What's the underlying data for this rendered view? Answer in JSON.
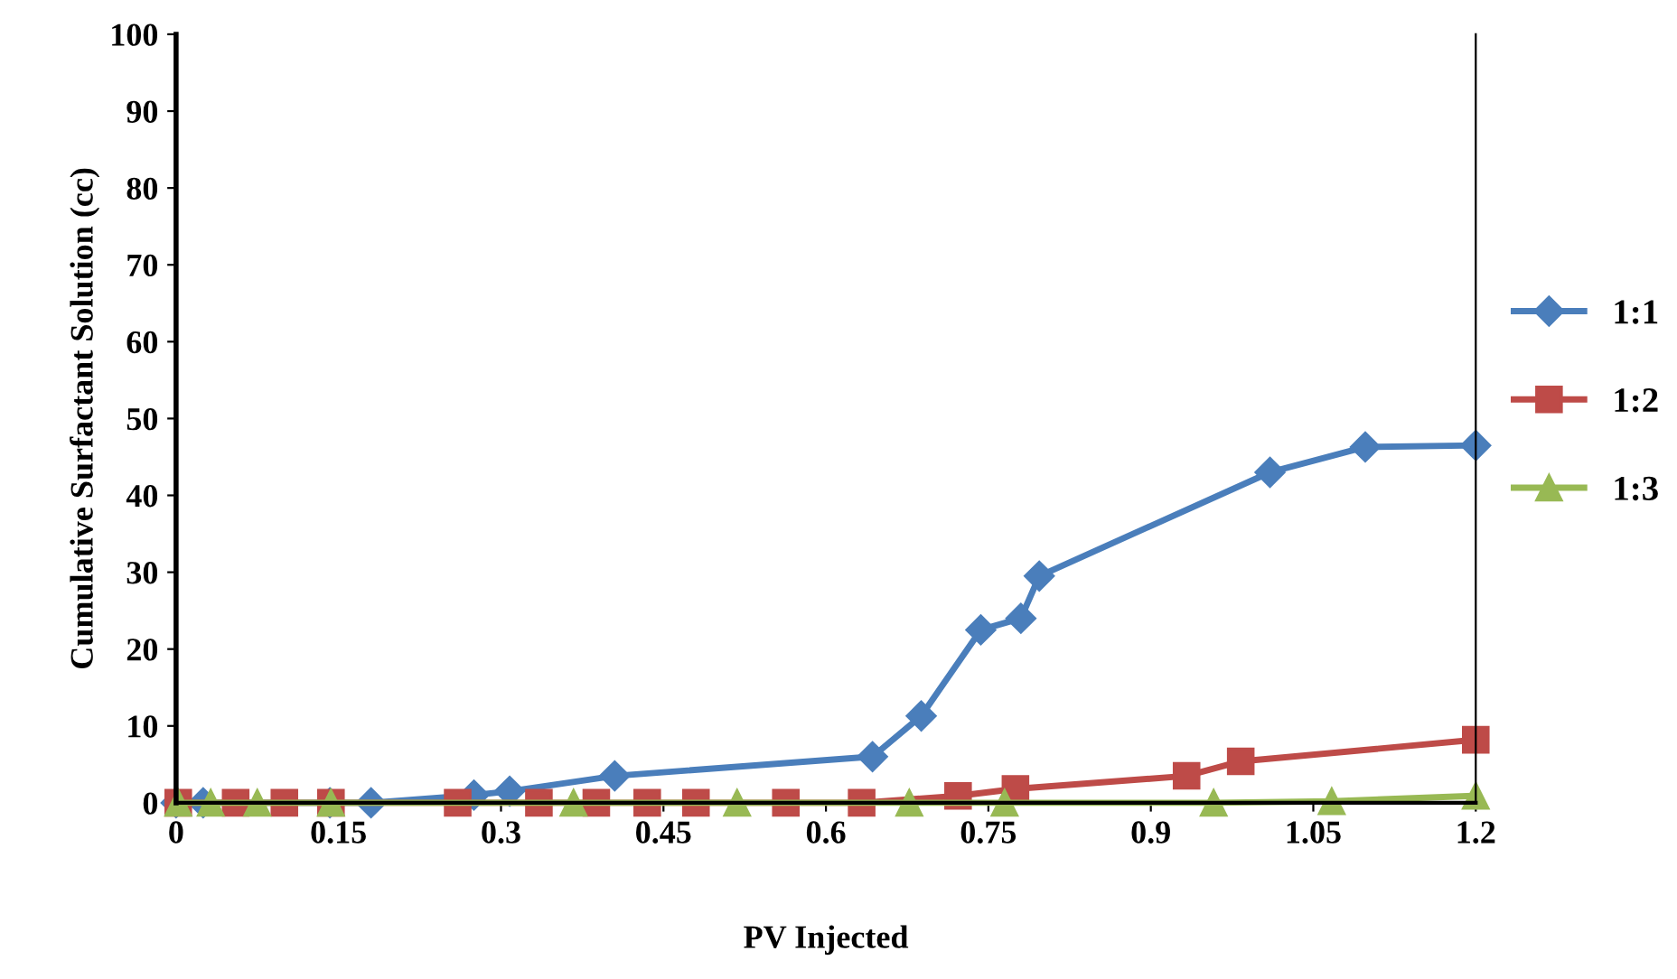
{
  "chart_data": {
    "type": "line",
    "xlabel": "PV Injected",
    "ylabel": "Cumulative Surfactant Solution (cc)",
    "xlim": [
      0,
      1.2
    ],
    "ylim": [
      0,
      100
    ],
    "xticks": [
      0,
      0.15,
      0.3,
      0.45,
      0.6,
      0.75,
      0.9,
      1.05,
      1.2
    ],
    "yticks": [
      0,
      10,
      20,
      30,
      40,
      50,
      60,
      70,
      80,
      90,
      100
    ],
    "grid": false,
    "legend": "right",
    "series": [
      {
        "name": "1:1",
        "color": "#4a7ebb",
        "marker": "diamond",
        "x": [
          0.0,
          0.025,
          0.142,
          0.18,
          0.275,
          0.308,
          0.405,
          0.643,
          0.688,
          0.743,
          0.78,
          0.797,
          1.01,
          1.098,
          1.2
        ],
        "values": [
          0,
          0,
          0,
          0,
          1,
          1.5,
          3.5,
          6,
          11.3,
          22.5,
          24,
          29.5,
          43,
          46.3,
          46.5
        ]
      },
      {
        "name": "1:2",
        "color": "#be4b48",
        "marker": "square",
        "x": [
          0.002,
          0.055,
          0.1,
          0.143,
          0.26,
          0.335,
          0.388,
          0.435,
          0.48,
          0.563,
          0.633,
          0.722,
          0.775,
          0.933,
          0.983,
          1.2
        ],
        "values": [
          0,
          0,
          0,
          0,
          0,
          0,
          0,
          0,
          0,
          0,
          0,
          0.9,
          1.8,
          3.5,
          5.4,
          8.2
        ]
      },
      {
        "name": "1:3",
        "color": "#98b954",
        "marker": "triangle",
        "x": [
          0.002,
          0.032,
          0.075,
          0.143,
          0.367,
          0.518,
          0.677,
          0.765,
          0.958,
          1.067,
          1.2
        ],
        "values": [
          0,
          0,
          0,
          0,
          0,
          0,
          0,
          0,
          0,
          0.2,
          0.9
        ]
      }
    ]
  }
}
